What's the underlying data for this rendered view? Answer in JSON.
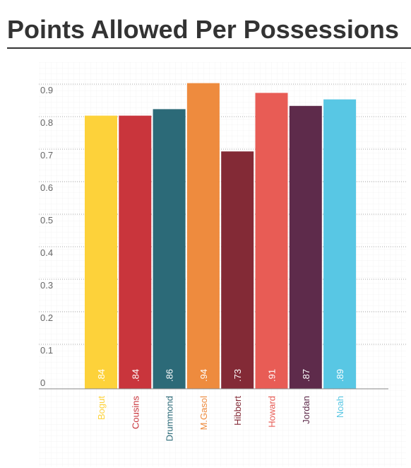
{
  "chart_data": {
    "type": "bar",
    "title": "Points Allowed Per Possessions",
    "categories": [
      "Bogut",
      "Cousins",
      "Drummond",
      "M.Gasol",
      "Hibbert",
      "Howard",
      "Jordan",
      "Noah"
    ],
    "values": [
      0.84,
      0.84,
      0.86,
      0.94,
      0.73,
      0.91,
      0.87,
      0.89
    ],
    "value_labels": [
      ".84",
      ".84",
      ".86",
      ".94",
      ".73",
      ".91",
      ".87",
      ".89"
    ],
    "colors": [
      "#fdd23a",
      "#c9353c",
      "#2c6a78",
      "#ee8b3e",
      "#832a36",
      "#e85c55",
      "#5e2b4b",
      "#58c7e4"
    ],
    "ylim": [
      0,
      1
    ],
    "yticks": [
      0,
      0.1,
      0.2,
      0.3,
      0.4,
      0.5,
      0.6,
      0.7,
      0.8,
      0.9
    ],
    "grid": true
  }
}
